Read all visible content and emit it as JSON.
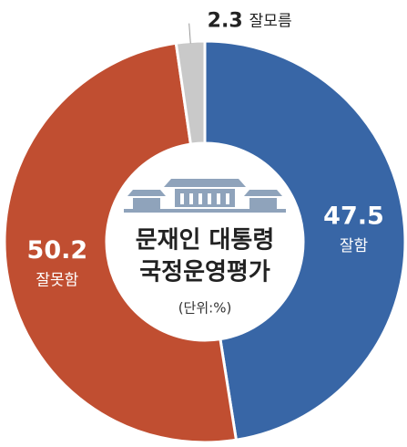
{
  "chart_data": {
    "type": "donut",
    "title": "문재인 대통령",
    "subtitle": "국정운영평가",
    "unit_note": "(단위:%)",
    "categories": [
      "잘함",
      "잘못함",
      "잘모름"
    ],
    "values": [
      47.5,
      50.2,
      2.3
    ],
    "colors": [
      "#3866a6",
      "#c04e31",
      "#c9c9c9"
    ]
  }
}
